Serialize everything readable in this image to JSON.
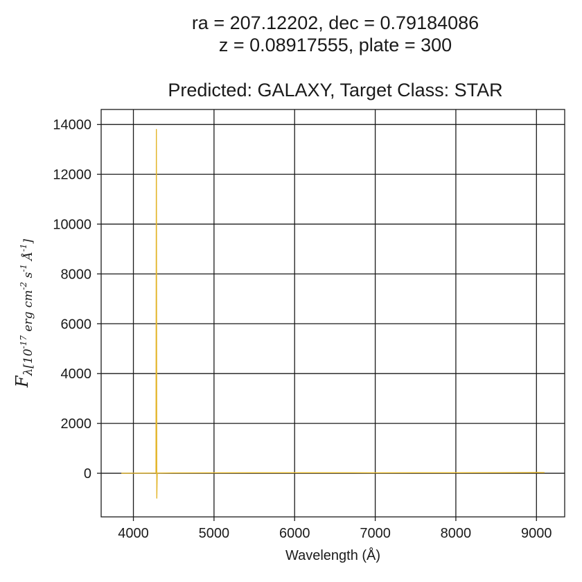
{
  "chart_data": {
    "type": "line",
    "title_lines": [
      "ra = 207.12202, dec = 0.79184086",
      "z = 0.08917555, plate = 300",
      "",
      "Predicted: GALAXY, Target Class: STAR"
    ],
    "xlabel": "Wavelength (Å)",
    "ylabel": "F_λ[10^-17 erg cm^-2 s^-1 Å^-1]",
    "xlim": [
      3600,
      9350
    ],
    "ylim": [
      -1750,
      14600
    ],
    "xticks": [
      4000,
      5000,
      6000,
      7000,
      8000,
      9000
    ],
    "yticks": [
      0,
      2000,
      4000,
      6000,
      8000,
      10000,
      12000,
      14000
    ],
    "grid": true,
    "series": [
      {
        "color": "#e3b52a",
        "x": [
          3850,
          4000,
          4200,
          4280,
          4285,
          4290,
          4295,
          4300,
          4500,
          5000,
          5500,
          6000,
          6500,
          7000,
          7500,
          8000,
          8500,
          9000,
          9100
        ],
        "y": [
          0,
          5,
          8,
          10,
          13800,
          -1000,
          10,
          8,
          12,
          18,
          20,
          22,
          20,
          18,
          20,
          22,
          25,
          30,
          28
        ]
      }
    ]
  }
}
